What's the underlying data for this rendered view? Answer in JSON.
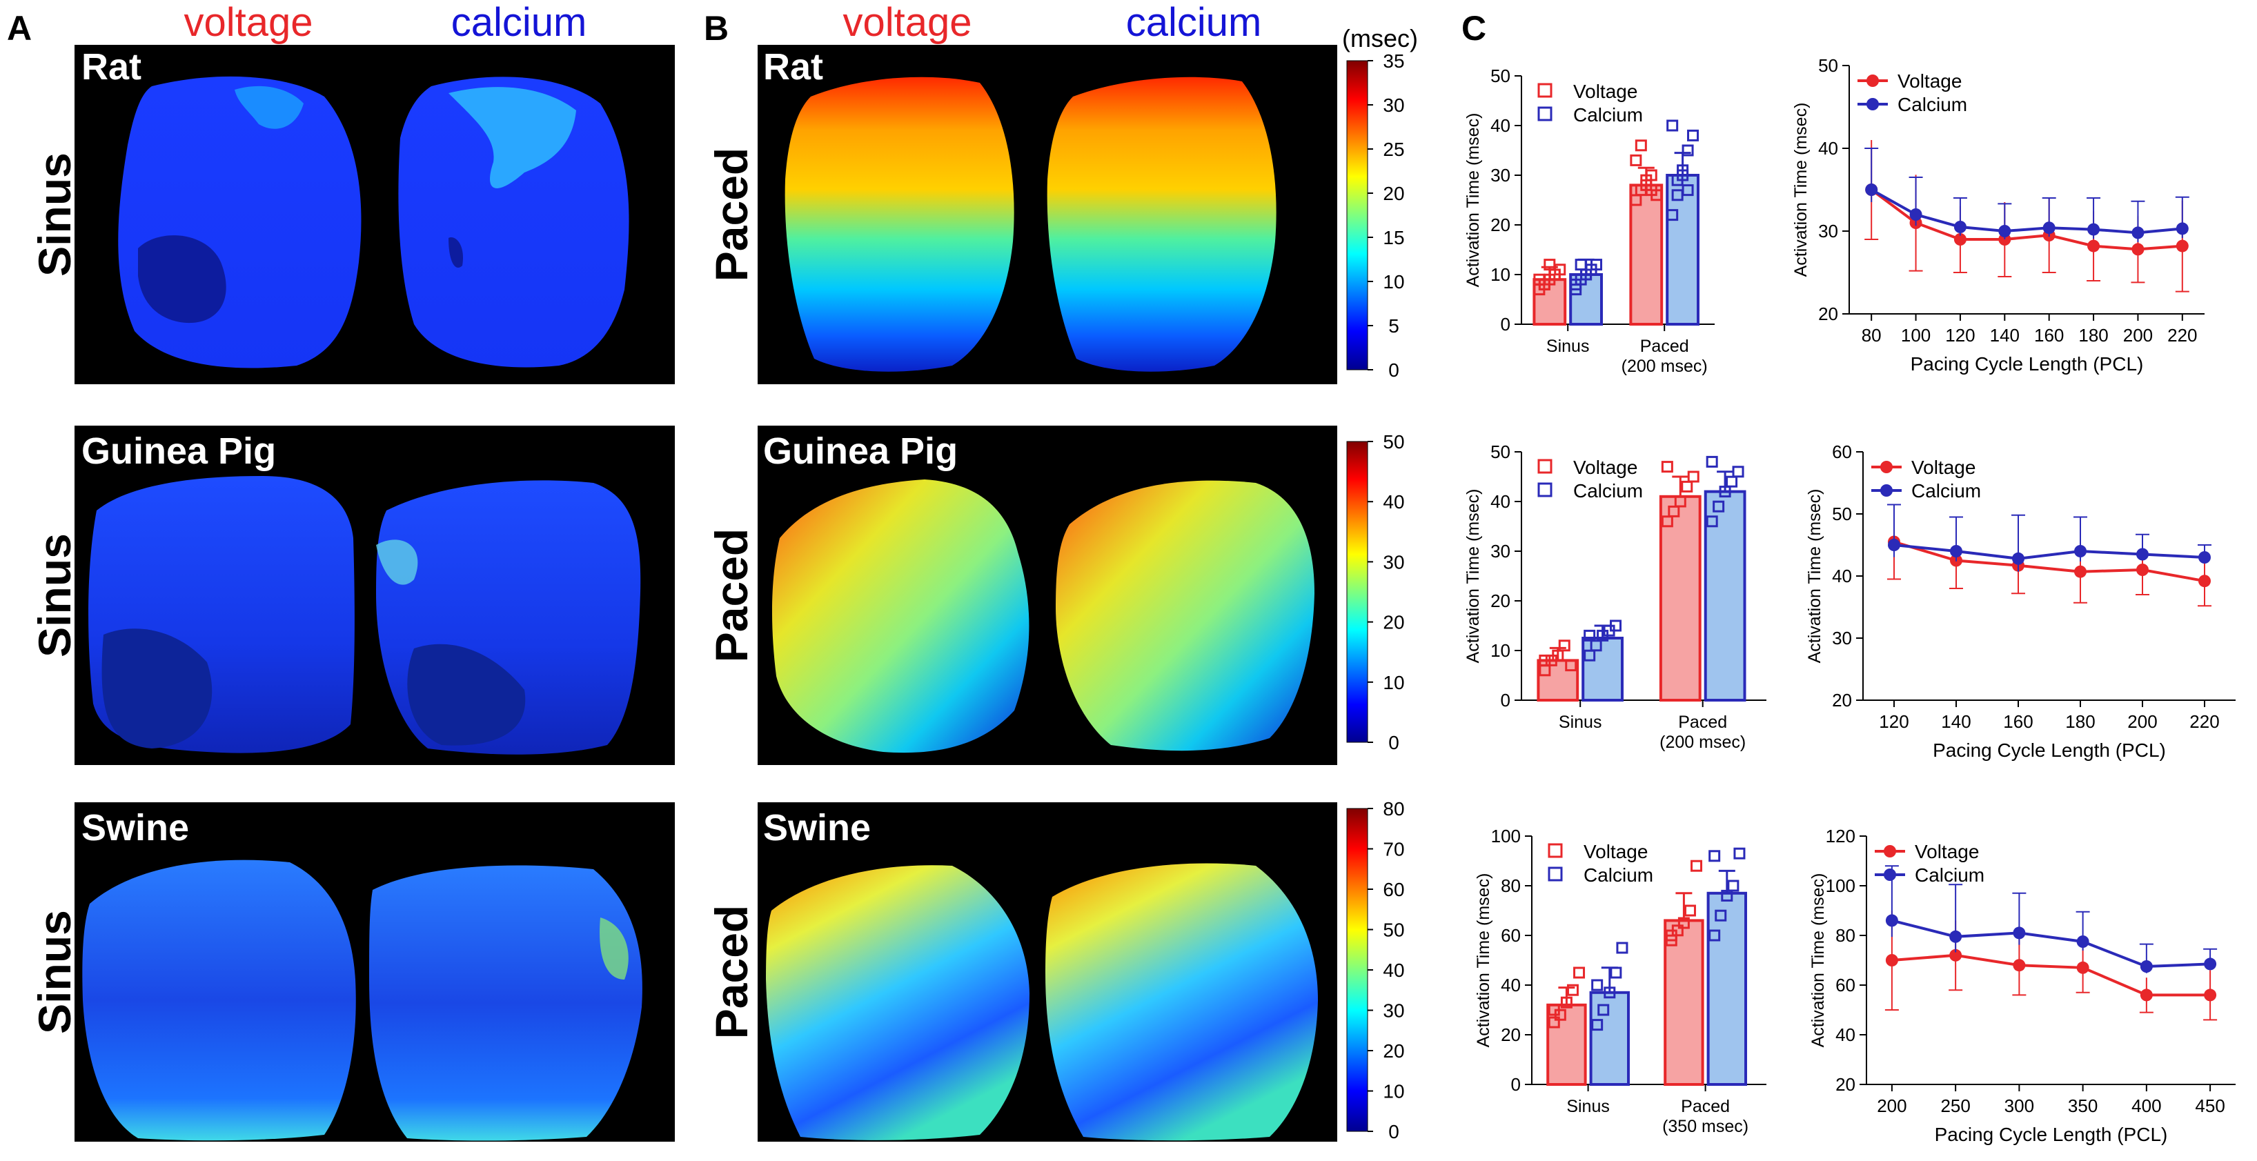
{
  "panel_letters": [
    "A",
    "B",
    "C"
  ],
  "column_labels": {
    "voltage": "voltage",
    "calcium": "calcium"
  },
  "species": [
    "Rat",
    "Guinea Pig",
    "Swine"
  ],
  "row_labels": {
    "sinus": "Sinus",
    "paced": "Paced"
  },
  "colorbar_unit": "(msec)",
  "colorbars": [
    {
      "ticks": [
        0,
        5,
        10,
        15,
        20,
        25,
        30,
        35
      ],
      "max": 35
    },
    {
      "ticks": [
        0,
        10,
        20,
        30,
        40,
        50
      ],
      "max": 50
    },
    {
      "ticks": [
        0,
        10,
        20,
        30,
        40,
        50,
        60,
        70,
        80
      ],
      "max": 80
    }
  ],
  "colors": {
    "voltage": "#e8272a",
    "calcium": "#2a2ab8",
    "voltage_fill": "#f6a3a3",
    "calcium_fill": "#9fc4ee",
    "map_bg": "#000000"
  },
  "chart_data": [
    {
      "type": "bar",
      "species": "Rat",
      "categories": [
        "Sinus",
        "Paced\n(200 msec)"
      ],
      "series": [
        {
          "name": "Voltage",
          "values": [
            9,
            28
          ],
          "err": [
            2.5,
            3.5
          ],
          "points": [
            [
              7,
              8,
              9,
              10,
              11,
              9,
              8,
              12,
              10
            ],
            [
              25,
              27,
              28,
              30,
              26,
              33,
              36,
              29,
              27
            ]
          ]
        },
        {
          "name": "Calcium",
          "values": [
            10,
            30
          ],
          "err": [
            3,
            4.5
          ],
          "points": [
            [
              7,
              9,
              10,
              11,
              12,
              8,
              12,
              10
            ],
            [
              22,
              26,
              30,
              35,
              38,
              40,
              29,
              31,
              27
            ]
          ]
        }
      ],
      "ylabel": "Activation Time (msec)",
      "ylim": [
        0,
        50
      ],
      "yticks": [
        0,
        10,
        20,
        30,
        40,
        50
      ]
    },
    {
      "type": "line",
      "species": "Rat",
      "x": [
        80,
        100,
        120,
        140,
        160,
        180,
        200,
        220
      ],
      "series": [
        {
          "name": "Voltage",
          "values": [
            35,
            31,
            29,
            29,
            29.5,
            28.2,
            27.8,
            28.2
          ],
          "err": [
            6,
            5.8,
            4,
            4.5,
            4.5,
            4.2,
            4,
            5.5
          ]
        },
        {
          "name": "Calcium",
          "values": [
            35,
            32,
            30.5,
            30,
            30.4,
            30.2,
            29.8,
            30.3
          ],
          "err": [
            5,
            4.5,
            3.5,
            3.3,
            3.6,
            3.8,
            3.8,
            3.8
          ]
        }
      ],
      "xlabel": "Pacing Cycle Length (PCL)",
      "ylabel": "Activation Time (msec)",
      "xlim": [
        70,
        230
      ],
      "xticks": [
        80,
        100,
        120,
        140,
        160,
        180,
        200,
        220
      ],
      "ylim": [
        20,
        50
      ],
      "yticks": [
        20,
        30,
        40,
        50
      ]
    },
    {
      "type": "bar",
      "species": "Guinea Pig",
      "categories": [
        "Sinus",
        "Paced\n(200 msec)"
      ],
      "series": [
        {
          "name": "Voltage",
          "values": [
            8,
            41
          ],
          "err": [
            2.5,
            4
          ],
          "points": [
            [
              6,
              8,
              9,
              11,
              7,
              8
            ],
            [
              36,
              38,
              40,
              43,
              45,
              47
            ]
          ]
        },
        {
          "name": "Calcium",
          "values": [
            12.5,
            42
          ],
          "err": [
            2.5,
            4
          ],
          "points": [
            [
              9,
              11,
              13,
              14,
              15,
              13
            ],
            [
              36,
              39,
              42,
              44,
              46,
              48
            ]
          ]
        }
      ],
      "ylabel": "Activation Time (msec)",
      "ylim": [
        0,
        50
      ],
      "yticks": [
        0,
        10,
        20,
        30,
        40,
        50
      ]
    },
    {
      "type": "line",
      "species": "Guinea Pig",
      "x": [
        120,
        140,
        160,
        180,
        200,
        220
      ],
      "series": [
        {
          "name": "Voltage",
          "values": [
            45.5,
            42.5,
            41.7,
            40.7,
            41,
            39.2
          ],
          "err": [
            6,
            4.5,
            4.5,
            5,
            4,
            4
          ]
        },
        {
          "name": "Calcium",
          "values": [
            45,
            44,
            42.8,
            44,
            43.5,
            43
          ],
          "err": [
            6.5,
            5.5,
            7,
            5.5,
            3.2,
            2
          ]
        }
      ],
      "xlabel": "Pacing Cycle Length (PCL)",
      "ylabel": "Activation Time (msec)",
      "xlim": [
        110,
        230
      ],
      "xticks": [
        120,
        140,
        160,
        180,
        200,
        220
      ],
      "ylim": [
        20,
        60
      ],
      "yticks": [
        20,
        30,
        40,
        50,
        60
      ]
    },
    {
      "type": "bar",
      "species": "Swine",
      "categories": [
        "Sinus",
        "Paced\n(350 msec)"
      ],
      "series": [
        {
          "name": "Voltage",
          "values": [
            32,
            66
          ],
          "err": [
            7,
            11
          ],
          "points": [
            [
              25,
              28,
              33,
              38,
              45,
              30
            ],
            [
              58,
              62,
              65,
              70,
              88,
              60
            ]
          ]
        },
        {
          "name": "Calcium",
          "values": [
            37,
            77
          ],
          "err": [
            10,
            9
          ],
          "points": [
            [
              24,
              30,
              37,
              45,
              55,
              40
            ],
            [
              60,
              68,
              76,
              80,
              93,
              92
            ]
          ]
        }
      ],
      "ylabel": "Activation Time (msec)",
      "ylim": [
        0,
        100
      ],
      "yticks": [
        0,
        20,
        40,
        60,
        80,
        100
      ]
    },
    {
      "type": "line",
      "species": "Swine",
      "x": [
        200,
        250,
        300,
        350,
        400,
        450
      ],
      "series": [
        {
          "name": "Voltage",
          "values": [
            70,
            72,
            68,
            67,
            56,
            56
          ],
          "err": [
            20,
            14,
            12,
            10,
            7,
            10
          ]
        },
        {
          "name": "Calcium",
          "values": [
            86,
            79.5,
            81,
            77.5,
            67.5,
            68.5
          ],
          "err": [
            22,
            21,
            16,
            12,
            9,
            6
          ]
        }
      ],
      "xlabel": "Pacing Cycle Length (PCL)",
      "ylabel": "Activation Time (msec)",
      "xlim": [
        180,
        470
      ],
      "xticks": [
        200,
        250,
        300,
        350,
        400,
        450
      ],
      "ylim": [
        20,
        120
      ],
      "yticks": [
        20,
        40,
        60,
        80,
        100,
        120
      ]
    }
  ]
}
